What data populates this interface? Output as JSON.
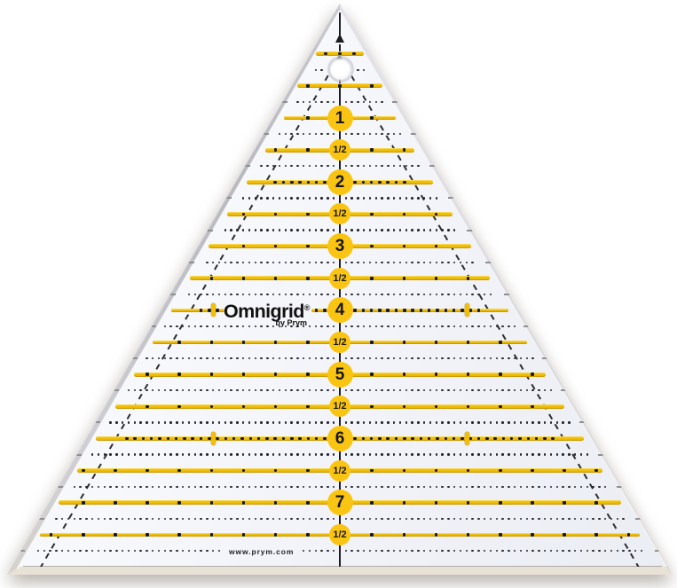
{
  "photo": {
    "subject": "60-degree triangle quilting ruler photographed on a white background"
  },
  "brand": {
    "logo": "Omnigrid",
    "registered": "®",
    "byline": "by Prym",
    "website": "www.prym.com"
  },
  "colors": {
    "line_yellow": "#f2bf06",
    "badge_yellow": "#fac512",
    "print_black": "#1c1c22",
    "plastic_edge": "#c6c6cc"
  },
  "ruler": {
    "kind": "60-degree triangle",
    "lines": [
      {
        "value": 0,
        "label": "",
        "style": "top3"
      },
      {
        "value": 0.5,
        "label": "",
        "style": "plain"
      },
      {
        "value": 1,
        "label": "1",
        "badge": "whole",
        "style": "sparse"
      },
      {
        "value": 1.5,
        "label": "1/2",
        "badge": "half",
        "style": "sparse"
      },
      {
        "value": 2,
        "label": "2",
        "badge": "whole",
        "style": "dense"
      },
      {
        "value": 2.5,
        "label": "1/2",
        "badge": "half",
        "style": "sparse"
      },
      {
        "value": 3,
        "label": "3",
        "badge": "whole",
        "style": "sparse"
      },
      {
        "value": 3.5,
        "label": "1/2",
        "badge": "half",
        "style": "sparse"
      },
      {
        "value": 4,
        "label": "4",
        "badge": "whole",
        "style": "dense",
        "ticks": true,
        "logo_gap": true
      },
      {
        "value": 4.5,
        "label": "1/2",
        "badge": "half",
        "style": "sparse"
      },
      {
        "value": 5,
        "label": "5",
        "badge": "whole",
        "style": "sparse"
      },
      {
        "value": 5.5,
        "label": "1/2",
        "badge": "half",
        "style": "sparse"
      },
      {
        "value": 6,
        "label": "6",
        "badge": "whole",
        "style": "dense",
        "ticks": true
      },
      {
        "value": 6.5,
        "label": "1/2",
        "badge": "half",
        "style": "sparse"
      },
      {
        "value": 7,
        "label": "7",
        "badge": "whole",
        "style": "sparse"
      },
      {
        "value": 7.5,
        "label": "1/2",
        "badge": "half",
        "style": "sparse"
      }
    ],
    "quarter_values": [
      0.25,
      0.75,
      1.25,
      1.75,
      2.25,
      2.75,
      3.25,
      3.75,
      4.25,
      4.75,
      5.25,
      5.75,
      6.25,
      6.75,
      7.25,
      7.75
    ],
    "website_row_value": 7.75
  }
}
